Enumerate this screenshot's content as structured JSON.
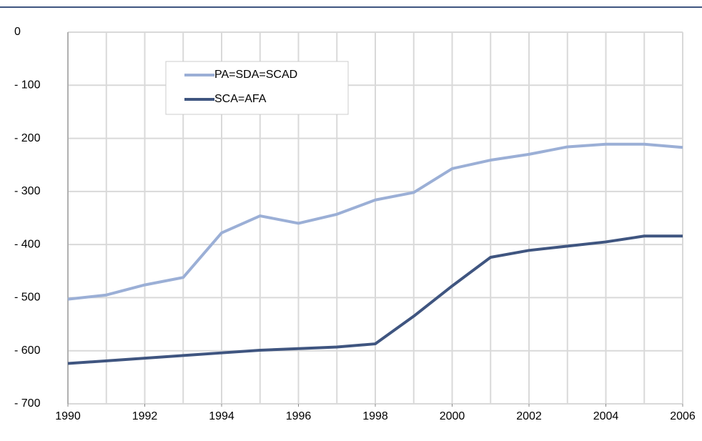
{
  "chart_data": {
    "type": "line",
    "x": [
      1990,
      1991,
      1992,
      1993,
      1994,
      1995,
      1996,
      1997,
      1998,
      1999,
      2000,
      2001,
      2002,
      2003,
      2004,
      2005,
      2006
    ],
    "series": [
      {
        "name": "PA=SDA=SCAD",
        "color": "#9bafd6",
        "values": [
          -503,
          -495,
          -476,
          -462,
          -378,
          -346,
          -360,
          -343,
          -316,
          -302,
          -257,
          -241,
          -230,
          -216,
          -211,
          -211,
          -217
        ]
      },
      {
        "name": "SCA=AFA",
        "color": "#3f5580",
        "values": [
          -624,
          -619,
          -614,
          -609,
          -604,
          -599,
          -596,
          -593,
          -587,
          -535,
          -478,
          -424,
          -411,
          -403,
          -395,
          -384,
          -384
        ]
      }
    ],
    "xlim": [
      1990,
      2006
    ],
    "xticks": [
      1990,
      1992,
      1994,
      1996,
      1998,
      2000,
      2002,
      2004,
      2006
    ],
    "ylim": [
      -700,
      0
    ],
    "yticks": [
      0,
      {
        "value": -100,
        "label": "- 100"
      },
      {
        "value": -200,
        "label": "- 200"
      },
      {
        "value": -300,
        "label": "- 300"
      },
      {
        "value": -400,
        "label": "- 400"
      },
      {
        "value": -500,
        "label": "- 500"
      },
      {
        "value": -600,
        "label": "- 600"
      },
      {
        "value": -700,
        "label": "- 700"
      }
    ],
    "grid": true
  }
}
